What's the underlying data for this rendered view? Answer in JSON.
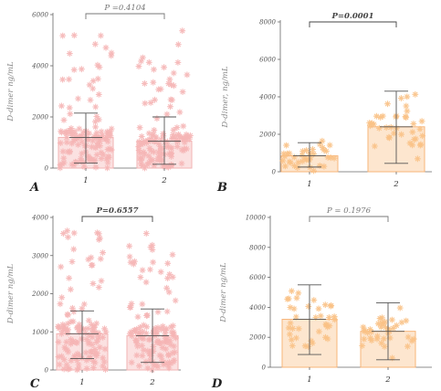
{
  "chart_data": [
    {
      "type": "bar",
      "panel_label": "A",
      "ylabel": "D-dimer ng/mL",
      "ylim": [
        0,
        6000
      ],
      "yticks": [
        "0",
        "2000",
        "4000",
        "6000"
      ],
      "categories": [
        "1",
        "2"
      ],
      "values": [
        1200,
        1050
      ],
      "error_upper": [
        2150,
        2000
      ],
      "error_lower": [
        200,
        150
      ],
      "p_value": "P =0.4104",
      "p_bold": false,
      "colors": {
        "bar_fill": "#fbe1e1",
        "bar_edge": "#f2b3b3",
        "point": "#f5b5b5"
      }
    },
    {
      "type": "bar",
      "panel_label": "B",
      "ylabel": "D-dimer, ng/mL",
      "ylim": [
        0,
        8000
      ],
      "yticks": [
        "0",
        "2000",
        "4000",
        "6000",
        "8000"
      ],
      "categories": [
        "1",
        "2"
      ],
      "values": [
        850,
        2400
      ],
      "error_upper": [
        1550,
        4300
      ],
      "error_lower": [
        250,
        450
      ],
      "p_value": "P=0.0001",
      "p_bold": true,
      "colors": {
        "bar_fill": "#fde6cf",
        "bar_edge": "#f7b57a",
        "point": "#f9c185"
      }
    },
    {
      "type": "bar",
      "panel_label": "C",
      "ylabel": "D-dimer ng/mL",
      "ylim": [
        0,
        4000
      ],
      "yticks": [
        "0",
        "1000",
        "2000",
        "3000",
        "4000"
      ],
      "categories": [
        "1",
        "2"
      ],
      "values": [
        950,
        900
      ],
      "error_upper": [
        1550,
        1600
      ],
      "error_lower": [
        300,
        200
      ],
      "p_value": "P=0.6557",
      "p_bold": true,
      "colors": {
        "bar_fill": "#fbe1e1",
        "bar_edge": "#f2b3b3",
        "point": "#f5b5b5"
      }
    },
    {
      "type": "bar",
      "panel_label": "D",
      "ylabel": "D-dimer ng/mL",
      "ylim": [
        0,
        10000
      ],
      "yticks": [
        "0",
        "2000",
        "4000",
        "6000",
        "8000",
        "10000"
      ],
      "categories": [
        "1",
        "2"
      ],
      "values": [
        3200,
        2400
      ],
      "error_upper": [
        5500,
        4300
      ],
      "error_lower": [
        850,
        500
      ],
      "p_value": "P = 0.1976",
      "p_bold": false,
      "colors": {
        "bar_fill": "#fde6cf",
        "bar_edge": "#f7b57a",
        "point": "#f9c185"
      }
    }
  ]
}
